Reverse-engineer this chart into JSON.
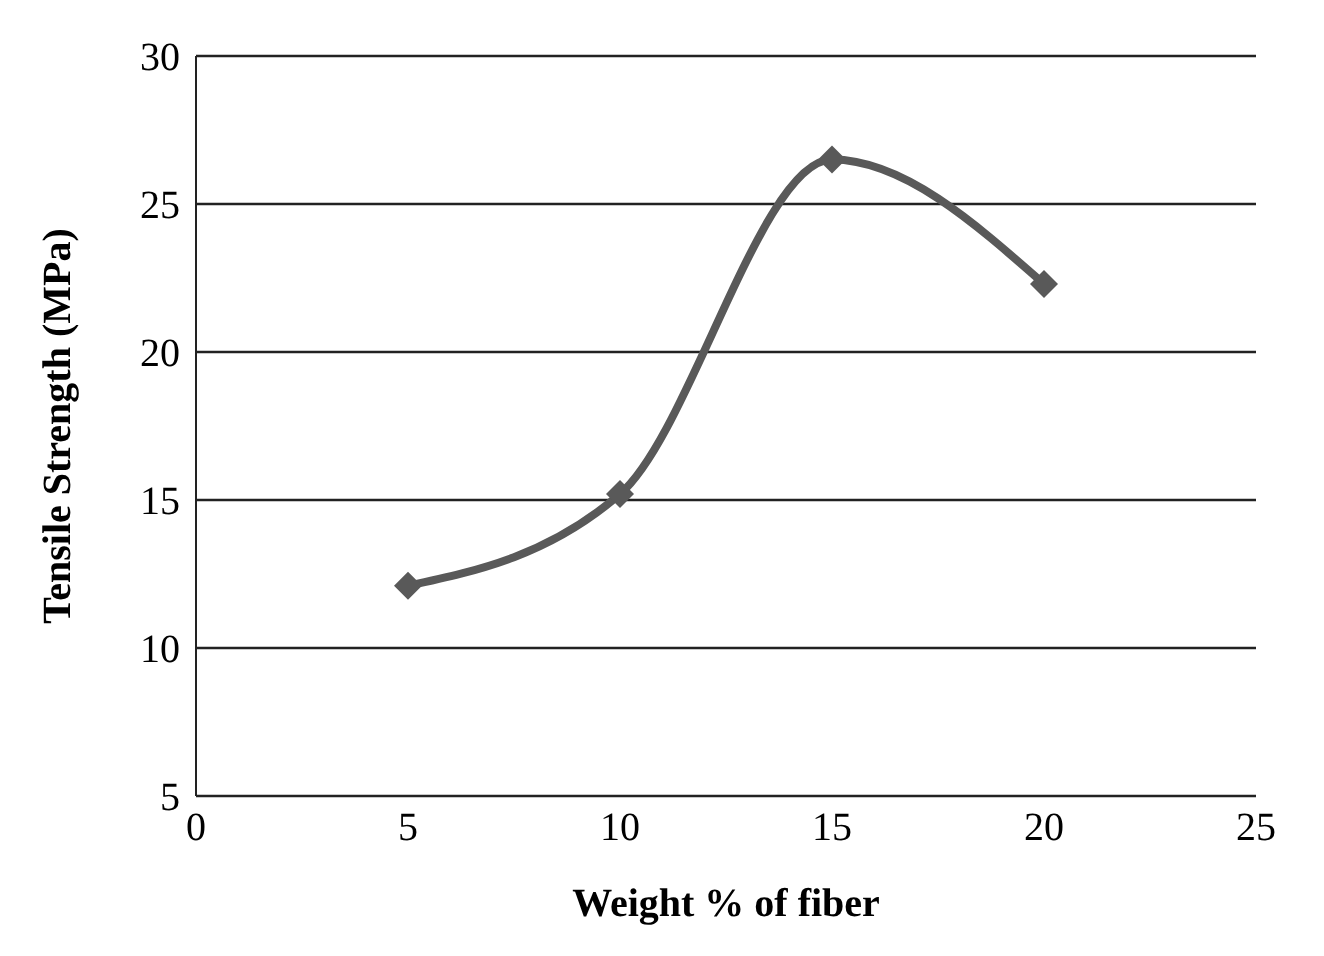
{
  "chart_data": {
    "type": "line",
    "xlabel": "Weight % of fiber",
    "ylabel": "Tensile Strength (MPa)",
    "x": [
      5,
      10,
      15,
      20
    ],
    "series": [
      {
        "color": "#595959",
        "values": [
          12.1,
          15.2,
          26.5,
          22.3
        ]
      }
    ],
    "xlim": [
      0,
      25
    ],
    "xticks": [
      0,
      5,
      10,
      15,
      20,
      25
    ],
    "ylim": [
      5,
      30
    ],
    "yticks": [
      5,
      10,
      15,
      20,
      25,
      30
    ],
    "grid": "y",
    "marker": "diamond",
    "legend": false
  }
}
